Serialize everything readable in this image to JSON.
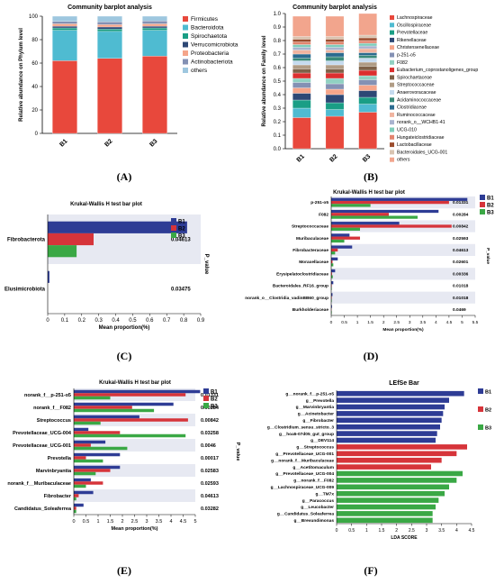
{
  "panel_labels": [
    "(A)",
    "(B)",
    "(C)",
    "(D)",
    "(E)",
    "(F)"
  ],
  "colors": {
    "blue": "#2e3c95",
    "red": "#d6343a",
    "green": "#3aa845",
    "bgstripe": "#e7e9f2"
  },
  "chart_data": [
    {
      "type": "bar",
      "stacked": true,
      "title": "Community barplot analysis",
      "ylabel": "Relative abundance on Phylum level",
      "categories": [
        "B1",
        "B2",
        "B3"
      ],
      "ylim": [
        0,
        100
      ],
      "yticks": [
        "0",
        "20",
        "40",
        "60",
        "80",
        "100"
      ],
      "series": [
        {
          "name": "Firmicutes",
          "color": "#e8483c",
          "values": [
            62,
            64,
            66
          ]
        },
        {
          "name": "Bacteroidota",
          "color": "#4fbbd1",
          "values": [
            26,
            23,
            22
          ]
        },
        {
          "name": "Spirochaetota",
          "color": "#1a9e85",
          "values": [
            2,
            2,
            2
          ]
        },
        {
          "name": "Verrucomicrobiota",
          "color": "#2d4875",
          "values": [
            1.5,
            1.8,
            1.5
          ]
        },
        {
          "name": "Proteobacteria",
          "color": "#f5a58a",
          "values": [
            2,
            2,
            2
          ]
        },
        {
          "name": "Actinobacteriota",
          "color": "#8491b4",
          "values": [
            2,
            2.5,
            2.5
          ]
        },
        {
          "name": "others",
          "color": "#9ec7df",
          "values": [
            4.5,
            4.7,
            4
          ]
        }
      ]
    },
    {
      "type": "bar",
      "stacked": true,
      "title": "Community barplot analysis",
      "ylabel": "Relative abundance on Family level",
      "categories": [
        "B1",
        "B2",
        "B3"
      ],
      "ylim": [
        0,
        1
      ],
      "yticks": [
        "0.0",
        "0.1",
        "0.2",
        "0.3",
        "0.4",
        "0.5",
        "0.6",
        "0.7",
        "0.8",
        "0.9",
        "1.0"
      ],
      "series": [
        {
          "name": "Lachnospiraceae",
          "color": "#e8483c",
          "values": [
            0.23,
            0.24,
            0.27
          ]
        },
        {
          "name": "Oscillospiraceae",
          "color": "#4fbbd1",
          "values": [
            0.07,
            0.05,
            0.06
          ]
        },
        {
          "name": "Prevotellaceae",
          "color": "#1a9e85",
          "values": [
            0.06,
            0.05,
            0.05
          ]
        },
        {
          "name": "Rikenellaceae",
          "color": "#2d4875",
          "values": [
            0.05,
            0.06,
            0.05
          ]
        },
        {
          "name": "Christensenellaceae",
          "color": "#f5a58a",
          "values": [
            0.04,
            0.04,
            0.04
          ]
        },
        {
          "name": "p-251-o5",
          "color": "#8491b4",
          "values": [
            0.04,
            0.04,
            0.04
          ]
        },
        {
          "name": "F082",
          "color": "#91d1c2",
          "values": [
            0.03,
            0.04,
            0.03
          ]
        },
        {
          "name": "Eubacterium_coprostanoligenes_group",
          "color": "#dc2f2f",
          "values": [
            0.04,
            0.04,
            0.04
          ]
        },
        {
          "name": "Spirochaetaceae",
          "color": "#7e6148",
          "values": [
            0.03,
            0.03,
            0.03
          ]
        },
        {
          "name": "Streptococcaceae",
          "color": "#b09c85",
          "values": [
            0.03,
            0.03,
            0.03
          ]
        },
        {
          "name": "Anaerovoracaceae",
          "color": "#c6dbef",
          "values": [
            0.03,
            0.03,
            0.03
          ]
        },
        {
          "name": "Acidaminococcaceae",
          "color": "#3a8a7a",
          "values": [
            0.02,
            0.03,
            0.02
          ]
        },
        {
          "name": "Clostridiaceae",
          "color": "#2b6b8f",
          "values": [
            0.03,
            0.03,
            0.02
          ]
        },
        {
          "name": "Ruminococcaceae",
          "color": "#f0b4a0",
          "values": [
            0.03,
            0.02,
            0.03
          ]
        },
        {
          "name": "norank_o__WCHB1-41",
          "color": "#a9b3cf",
          "values": [
            0.02,
            0.02,
            0.02
          ]
        },
        {
          "name": "UCG-010",
          "color": "#7fcdbb",
          "values": [
            0.02,
            0.02,
            0.02
          ]
        },
        {
          "name": "Hungateiclostridiaceae",
          "color": "#e3856f",
          "values": [
            0.02,
            0.02,
            0.02
          ]
        },
        {
          "name": "Lactobacillaceae",
          "color": "#9c4d2e",
          "values": [
            0.02,
            0.02,
            0.02
          ]
        },
        {
          "name": "Bacteroidales_UCG-001",
          "color": "#d9c4b1",
          "values": [
            0.02,
            0.02,
            0.02
          ]
        },
        {
          "name": "others",
          "color": "#f2a58d",
          "values": [
            0.15,
            0.15,
            0.16
          ]
        }
      ]
    },
    {
      "type": "bar",
      "orientation": "horizontal",
      "title": "Krukal-Wallis H test bar plot",
      "xlabel": "Mean proportion(%)",
      "pvalue_label": "P_value",
      "xlim": [
        0,
        0.9
      ],
      "xticks": [
        "0",
        "0.1",
        "0.2",
        "0.3",
        "0.4",
        "0.5",
        "0.6",
        "0.7",
        "0.8",
        "0.9"
      ],
      "categories": [
        "Fibrobacterota",
        "Elusimicrobiota"
      ],
      "pvalues": [
        "0.04613",
        "0.03475"
      ],
      "series": [
        {
          "name": "B1",
          "values": [
            0.82,
            0.01
          ]
        },
        {
          "name": "B2",
          "values": [
            0.27,
            0.0
          ]
        },
        {
          "name": "B3",
          "values": [
            0.17,
            0.0
          ]
        }
      ]
    },
    {
      "type": "bar",
      "orientation": "horizontal",
      "title": "Krukal-Wallis H test bar plot",
      "xlabel": "Mean proportion(%)",
      "pvalue_label": "P_value",
      "xlim": [
        0,
        5.5
      ],
      "xticks": [
        "0",
        "0.5",
        "1",
        "1.5",
        "2",
        "2.5",
        "3",
        "3.5",
        "4",
        "4.5",
        "5",
        "5.5"
      ],
      "categories": [
        "p-251-o5",
        "F082",
        "Streptococcaceae",
        "Muribaculaceae",
        "Fibrobacteraceae",
        "Moraxellaceae",
        "Erysipelatoclostridiaceae",
        "Bacteroidales_RF16_group",
        "norank_o__Clostridia_vadinBB60_group",
        "Burkholderiaceae"
      ],
      "pvalues": [
        "0.01331",
        "0.00284",
        "0.00842",
        "0.02593",
        "0.04613",
        "0.02601",
        "0.00336",
        "0.01018",
        "0.01018",
        "0.0469"
      ],
      "series": [
        {
          "name": "B1",
          "values": [
            5.2,
            4.1,
            2.6,
            0.7,
            0.8,
            0.25,
            0.15,
            0.08,
            0.05,
            0.03
          ]
        },
        {
          "name": "B2",
          "values": [
            4.5,
            2.2,
            4.6,
            1.1,
            0.25,
            0.05,
            0.03,
            0.02,
            0.02,
            0.01
          ]
        },
        {
          "name": "B3",
          "values": [
            1.5,
            3.3,
            1.1,
            0.5,
            0.15,
            0.08,
            0.06,
            0.02,
            0.02,
            0.02
          ]
        }
      ]
    },
    {
      "type": "bar",
      "orientation": "horizontal",
      "title": "Krukal-Wallis H test bar plot",
      "xlabel": "Mean proportion(%)",
      "pvalue_label": "P_value",
      "xlim": [
        0,
        5
      ],
      "xticks": [
        "0",
        "0.5",
        "1",
        "1.5",
        "2",
        "2.5",
        "3",
        "3.5",
        "4",
        "4.5",
        "5"
      ],
      "categories": [
        "norank_f__p-251-o5",
        "norank_f__F082",
        "Streptococcus",
        "Prevotellaceae_UCG-004",
        "Prevotellaceae_UCG-001",
        "Prevotella",
        "Marvinbryantia",
        "norank_f__Muribaculaceae",
        "Fibrobacter",
        "Candidatus_Soleaferrea"
      ],
      "pvalues": [
        "0.01331",
        "0.00284",
        "0.00842",
        "0.03258",
        "0.0046",
        "0.00017",
        "0.02583",
        "0.02593",
        "0.04613",
        "0.03282"
      ],
      "series": [
        {
          "name": "B1",
          "values": [
            5.2,
            4.1,
            2.7,
            0.6,
            1.3,
            1.9,
            1.9,
            0.7,
            0.8,
            0.4
          ]
        },
        {
          "name": "B2",
          "values": [
            4.6,
            2.4,
            4.7,
            1.9,
            0.7,
            0.5,
            1.5,
            1.2,
            0.2,
            0.1
          ]
        },
        {
          "name": "B3",
          "values": [
            1.5,
            3.3,
            1.1,
            4.6,
            2.2,
            1.2,
            0.9,
            0.5,
            0.1,
            0.1
          ]
        }
      ]
    },
    {
      "type": "bar",
      "orientation": "horizontal",
      "title": "LEfSe Bar",
      "xlabel": "LDA SCORE",
      "xlim": [
        0,
        4.5
      ],
      "xticks": [
        "0",
        "0.5",
        "1",
        "1.5",
        "2",
        "2.5",
        "3",
        "3.5",
        "4",
        "4.5"
      ],
      "legend": [
        "B1",
        "B2",
        "B3"
      ],
      "items": [
        {
          "label": "g__norank_f__p-251-o5",
          "group": "B1",
          "value": 4.25
        },
        {
          "label": "g__Prevotella",
          "group": "B1",
          "value": 3.75
        },
        {
          "label": "g__Marvinbryantia",
          "group": "B1",
          "value": 3.6
        },
        {
          "label": "g__Acinetobacter",
          "group": "B1",
          "value": 3.55
        },
        {
          "label": "g__Fibrobacter",
          "group": "B1",
          "value": 3.5
        },
        {
          "label": "g__Clostridium_sensu_stricto_3",
          "group": "B1",
          "value": 3.45
        },
        {
          "label": "g__hoa5-07d05_gut_group",
          "group": "B1",
          "value": 3.35
        },
        {
          "label": "g__DEV114",
          "group": "B1",
          "value": 3.3
        },
        {
          "label": "g__Streptococcus",
          "group": "B2",
          "value": 4.35
        },
        {
          "label": "g__Prevotellaceae_UCG-001",
          "group": "B2",
          "value": 4.0
        },
        {
          "label": "g__norank_f__Muribaculaceae",
          "group": "B2",
          "value": 3.5
        },
        {
          "label": "g__Acetitomaculum",
          "group": "B2",
          "value": 3.15
        },
        {
          "label": "g__Prevotellaceae_UCG-004",
          "group": "B3",
          "value": 4.2
        },
        {
          "label": "g__norank_f__F082",
          "group": "B3",
          "value": 4.0
        },
        {
          "label": "g__Lachnospiraceae_UCG-009",
          "group": "B3",
          "value": 3.75
        },
        {
          "label": "g__TM7x",
          "group": "B3",
          "value": 3.6
        },
        {
          "label": "g__Paracoccus",
          "group": "B3",
          "value": 3.4
        },
        {
          "label": "g__Leucobacter",
          "group": "B3",
          "value": 3.3
        },
        {
          "label": "g__Candidatus_Soleaferrea",
          "group": "B3",
          "value": 3.2
        },
        {
          "label": "g__Brevundimonas",
          "group": "B3",
          "value": 3.2
        }
      ]
    }
  ]
}
